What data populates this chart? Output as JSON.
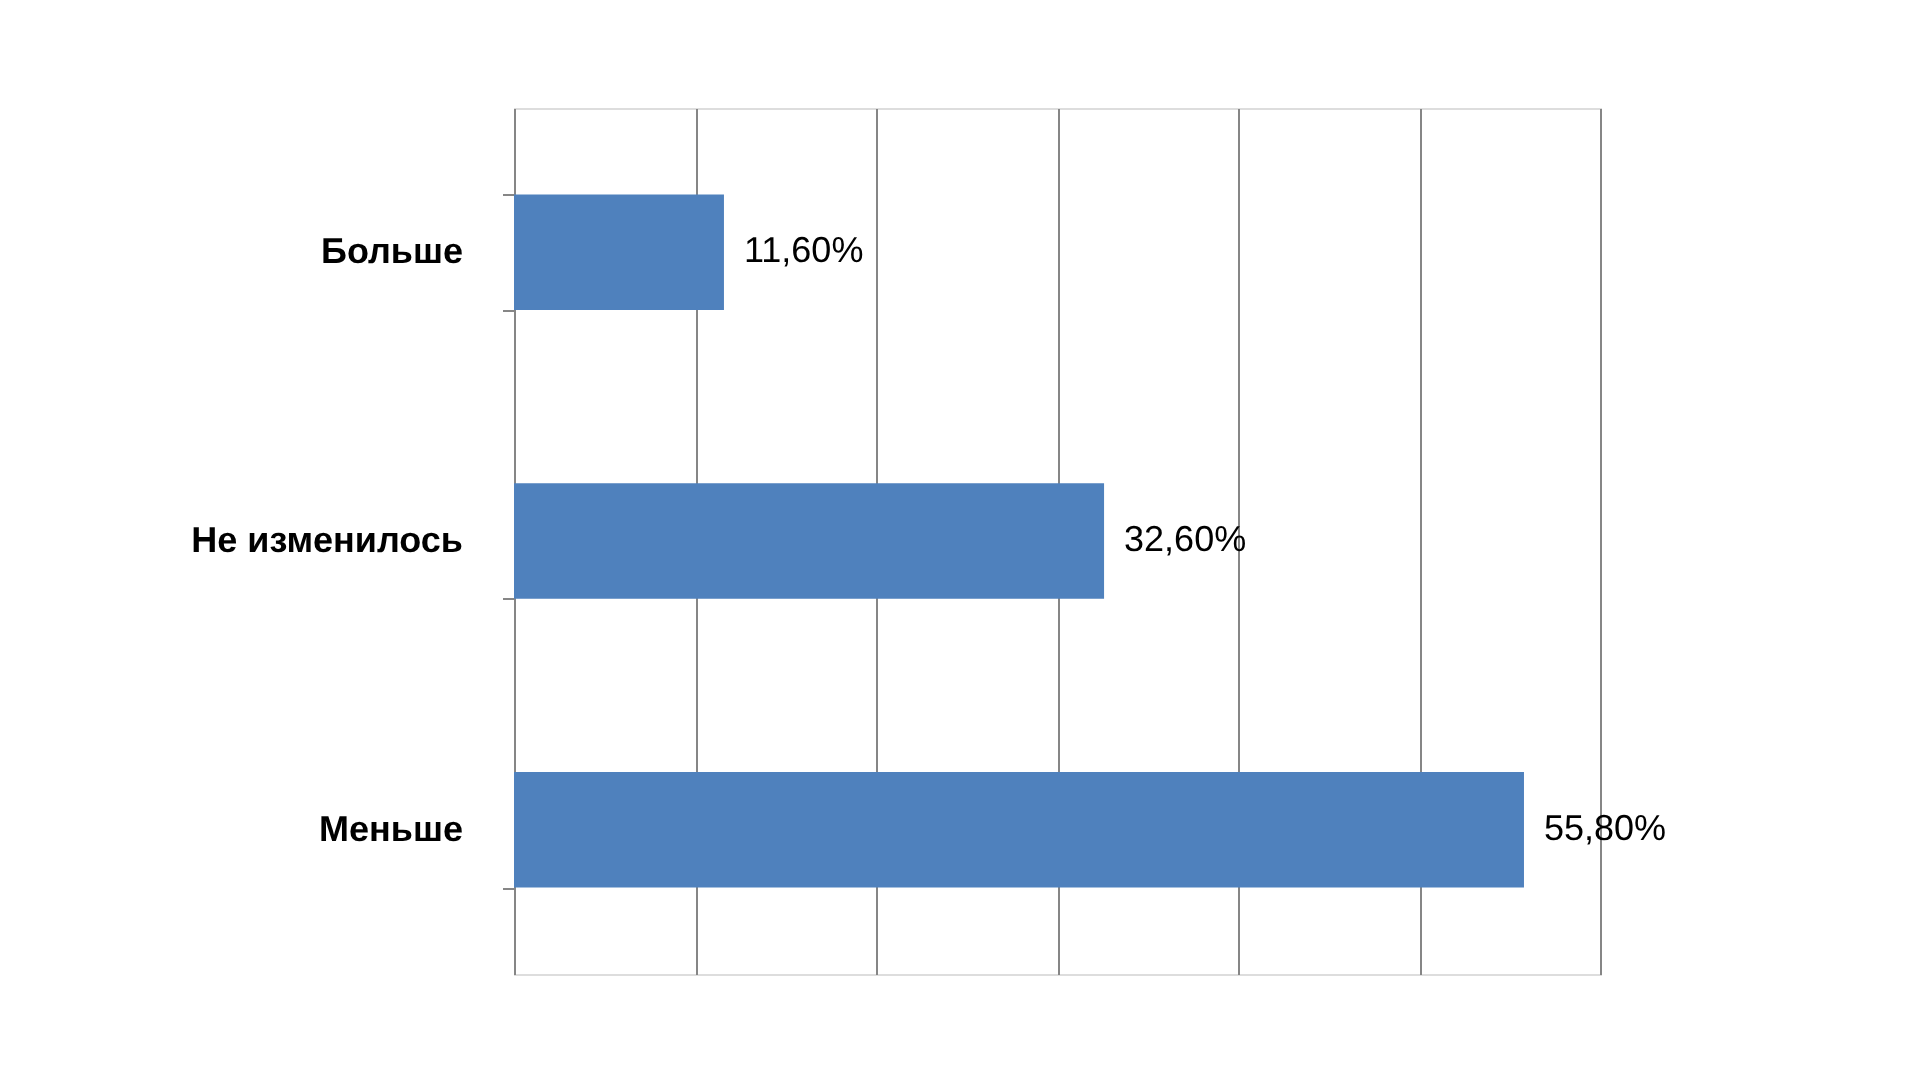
{
  "chart_data": {
    "type": "bar",
    "orientation": "horizontal",
    "categories": [
      "Больше",
      "Не изменилось",
      "Меньше"
    ],
    "values": [
      11.6,
      32.6,
      55.8
    ],
    "value_labels": [
      "11,60%",
      "32,60%",
      "55,80%"
    ],
    "color": "#4f81bd",
    "xlim": [
      0,
      60
    ],
    "xticks": [
      {
        "value": 0,
        "label": null
      },
      {
        "value": 10,
        "label": null
      },
      {
        "value": 20,
        "label": null
      },
      {
        "value": 30,
        "label": null
      },
      {
        "value": 40,
        "label": null
      },
      {
        "value": 50,
        "label": null
      },
      {
        "value": 60,
        "label": null
      }
    ],
    "grid": "x",
    "tick_labels": "y"
  }
}
